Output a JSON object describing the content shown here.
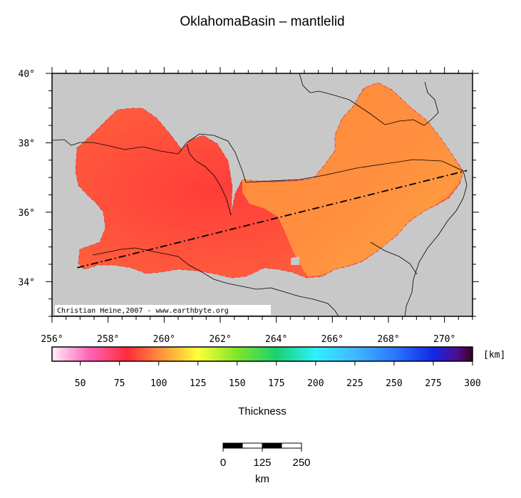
{
  "title": "OklahomaBasin – mantlelid",
  "credit": "Christian Heine,2007 - www.earthbyte.org",
  "map": {
    "lon_range": [
      256,
      271
    ],
    "lat_range": [
      33,
      40
    ],
    "x_ticks": [
      {
        "value": 256,
        "label": "256°"
      },
      {
        "value": 258,
        "label": "258°"
      },
      {
        "value": 260,
        "label": "260°"
      },
      {
        "value": 262,
        "label": "262°"
      },
      {
        "value": 264,
        "label": "264°"
      },
      {
        "value": 266,
        "label": "266°"
      },
      {
        "value": 268,
        "label": "268°"
      },
      {
        "value": 270,
        "label": "270°"
      }
    ],
    "y_ticks": [
      {
        "value": 34,
        "label": "34°"
      },
      {
        "value": 36,
        "label": "36°"
      },
      {
        "value": 38,
        "label": "38°"
      },
      {
        "value": 40,
        "label": "40°"
      }
    ],
    "background_color": "#c8c8c8",
    "profile_line": {
      "start": [
        256.9,
        34.4
      ],
      "end": [
        270.8,
        37.2
      ]
    }
  },
  "colorbar": {
    "unit": "[km]",
    "range": [
      32,
      300
    ],
    "ticks": [
      {
        "value": 50,
        "label": "50"
      },
      {
        "value": 75,
        "label": "75"
      },
      {
        "value": 100,
        "label": "100"
      },
      {
        "value": 125,
        "label": "125"
      },
      {
        "value": 150,
        "label": "150"
      },
      {
        "value": 175,
        "label": "175"
      },
      {
        "value": 200,
        "label": "200"
      },
      {
        "value": 225,
        "label": "225"
      },
      {
        "value": 250,
        "label": "250"
      },
      {
        "value": 275,
        "label": "275"
      },
      {
        "value": 300,
        "label": "300"
      }
    ],
    "stops": [
      {
        "value": 32,
        "color": "#fff0f8"
      },
      {
        "value": 55,
        "color": "#ff66bb"
      },
      {
        "value": 80,
        "color": "#ff2a3a"
      },
      {
        "value": 100,
        "color": "#ff8c3c"
      },
      {
        "value": 115,
        "color": "#ffd03a"
      },
      {
        "value": 125,
        "color": "#ffff3a"
      },
      {
        "value": 150,
        "color": "#7fe628"
      },
      {
        "value": 175,
        "color": "#1ad26e"
      },
      {
        "value": 200,
        "color": "#2ff0ff"
      },
      {
        "value": 225,
        "color": "#40b8ff"
      },
      {
        "value": 250,
        "color": "#2c78ff"
      },
      {
        "value": 275,
        "color": "#1426e6"
      },
      {
        "value": 290,
        "color": "#4d0e8c"
      },
      {
        "value": 300,
        "color": "#3a0020"
      }
    ],
    "label": "Thickness"
  },
  "scalebar": {
    "ticks": [
      {
        "value": 0,
        "label": "0"
      },
      {
        "value": 125,
        "label": "125"
      },
      {
        "value": 250,
        "label": "250"
      }
    ],
    "unit": "km"
  },
  "colors": {
    "thickness_deep_red": "#ff4a3c",
    "thickness_orange": "#ff8a3c",
    "thickness_light_orange": "#ffa040",
    "basin_outline": "#d23232"
  }
}
